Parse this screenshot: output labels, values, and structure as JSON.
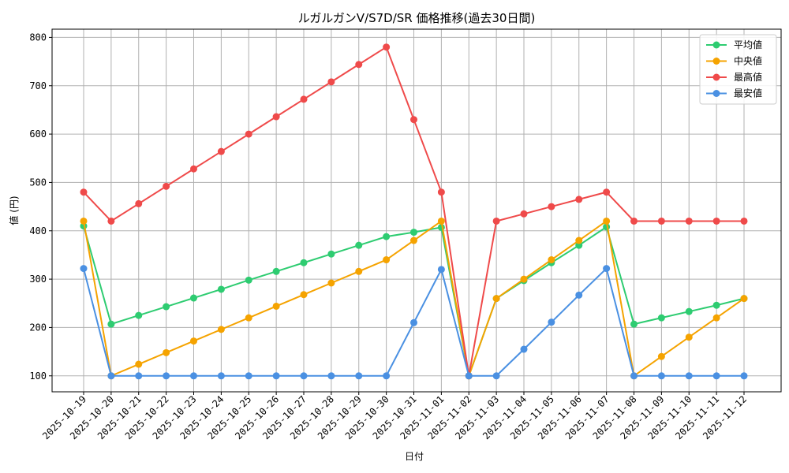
{
  "chart_data": {
    "type": "line",
    "title": "ルガルガンV/S7D/SR 価格推移(過去30日間)",
    "xlabel": "日付",
    "ylabel": "値 (円)",
    "categories": [
      "2025-10-19",
      "2025-10-20",
      "2025-10-21",
      "2025-10-22",
      "2025-10-23",
      "2025-10-24",
      "2025-10-25",
      "2025-10-26",
      "2025-10-27",
      "2025-10-28",
      "2025-10-29",
      "2025-10-30",
      "2025-10-31",
      "2025-11-01",
      "2025-11-02",
      "2025-11-03",
      "2025-11-04",
      "2025-11-05",
      "2025-11-06",
      "2025-11-07",
      "2025-11-08",
      "2025-11-09",
      "2025-11-10",
      "2025-11-11",
      "2025-11-12"
    ],
    "yticks": [
      100,
      200,
      300,
      400,
      500,
      600,
      700,
      800
    ],
    "ylim": [
      67,
      817
    ],
    "grid": true,
    "legend_position": "top-right",
    "series": [
      {
        "name": "平均値",
        "color": "#2ecc71",
        "values": [
          410,
          207,
          225,
          243,
          261,
          279,
          298,
          316,
          334,
          352,
          370,
          388,
          397,
          407,
          100,
          260,
          297,
          334,
          370,
          408,
          207,
          220,
          233,
          246,
          260
        ]
      },
      {
        "name": "中央値",
        "color": "#f5a300",
        "values": [
          420,
          100,
          124,
          148,
          172,
          196,
          220,
          244,
          268,
          292,
          316,
          340,
          380,
          420,
          100,
          260,
          300,
          340,
          380,
          420,
          100,
          140,
          180,
          220,
          260
        ]
      },
      {
        "name": "最高値",
        "color": "#ef4a4a",
        "values": [
          480,
          420,
          456,
          492,
          528,
          564,
          600,
          636,
          672,
          708,
          744,
          780,
          630,
          480,
          100,
          420,
          435,
          450,
          465,
          480,
          420,
          420,
          420,
          420,
          420
        ]
      },
      {
        "name": "最安値",
        "color": "#4a90e2",
        "values": [
          322,
          100,
          100,
          100,
          100,
          100,
          100,
          100,
          100,
          100,
          100,
          100,
          210,
          320,
          100,
          100,
          155,
          211,
          267,
          322,
          100,
          100,
          100,
          100,
          100
        ]
      }
    ]
  }
}
